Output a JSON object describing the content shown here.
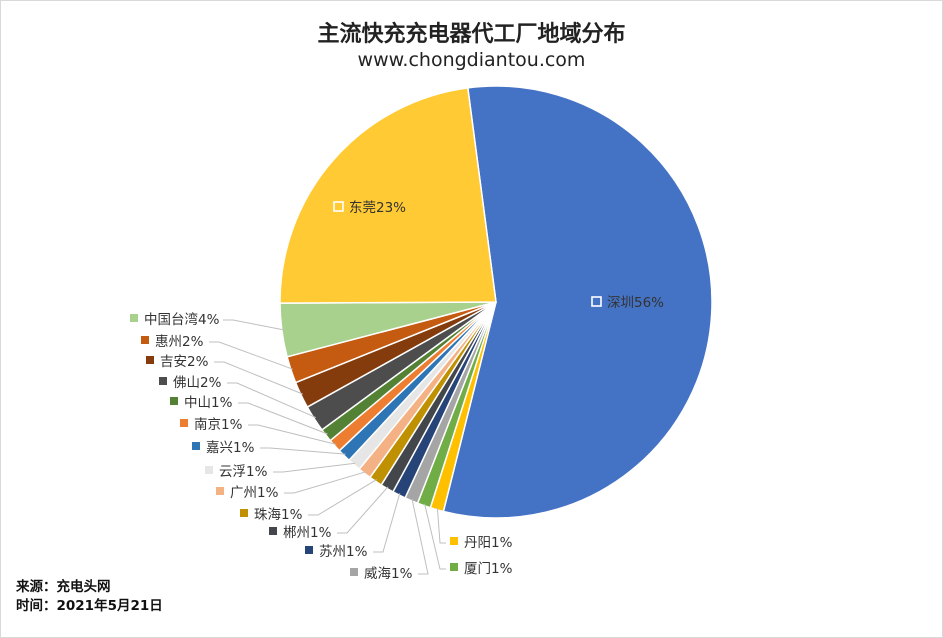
{
  "header": {
    "title": "主流快充充电器代工厂地域分布",
    "subtitle": "www.chongdiantou.com"
  },
  "footer": {
    "source": "来源：充电头网",
    "time": "时间：2021年5月21日"
  },
  "chart_data": {
    "type": "pie",
    "title": "主流快充充电器代工厂地域分布",
    "subtitle": "www.chongdiantou.com",
    "legend": "none",
    "data_labels": "category+percent",
    "slices": [
      {
        "label": "深圳",
        "percent_label": "56%",
        "value": 56,
        "color": "#4472C4"
      },
      {
        "label": "丹阳",
        "percent_label": "1%",
        "value": 1,
        "color": "#FFC000"
      },
      {
        "label": "厦门",
        "percent_label": "1%",
        "value": 1,
        "color": "#70AD47"
      },
      {
        "label": "威海",
        "percent_label": "1%",
        "value": 1,
        "color": "#A5A5A5"
      },
      {
        "label": "苏州",
        "percent_label": "1%",
        "value": 1,
        "color": "#264478"
      },
      {
        "label": "郴州",
        "percent_label": "1%",
        "value": 1,
        "color": "#43464B"
      },
      {
        "label": "珠海",
        "percent_label": "1%",
        "value": 1,
        "color": "#BF9000"
      },
      {
        "label": "广州",
        "percent_label": "1%",
        "value": 1,
        "color": "#F4B183"
      },
      {
        "label": "云浮",
        "percent_label": "1%",
        "value": 1,
        "color": "#E7E6E6"
      },
      {
        "label": "嘉兴",
        "percent_label": "1%",
        "value": 1,
        "color": "#2E75B6"
      },
      {
        "label": "南京",
        "percent_label": "1%",
        "value": 1,
        "color": "#ED7D31"
      },
      {
        "label": "中山",
        "percent_label": "1%",
        "value": 1,
        "color": "#548235"
      },
      {
        "label": "佛山",
        "percent_label": "2%",
        "value": 2,
        "color": "#4D4D4D"
      },
      {
        "label": "吉安",
        "percent_label": "2%",
        "value": 2,
        "color": "#843C0C"
      },
      {
        "label": "惠州",
        "percent_label": "2%",
        "value": 2,
        "color": "#C55A11"
      },
      {
        "label": "中国台湾",
        "percent_label": "4%",
        "value": 4,
        "color": "#A9D18E"
      },
      {
        "label": "东莞",
        "percent_label": "23%",
        "value": 23,
        "color": "#FFCA33"
      }
    ]
  }
}
